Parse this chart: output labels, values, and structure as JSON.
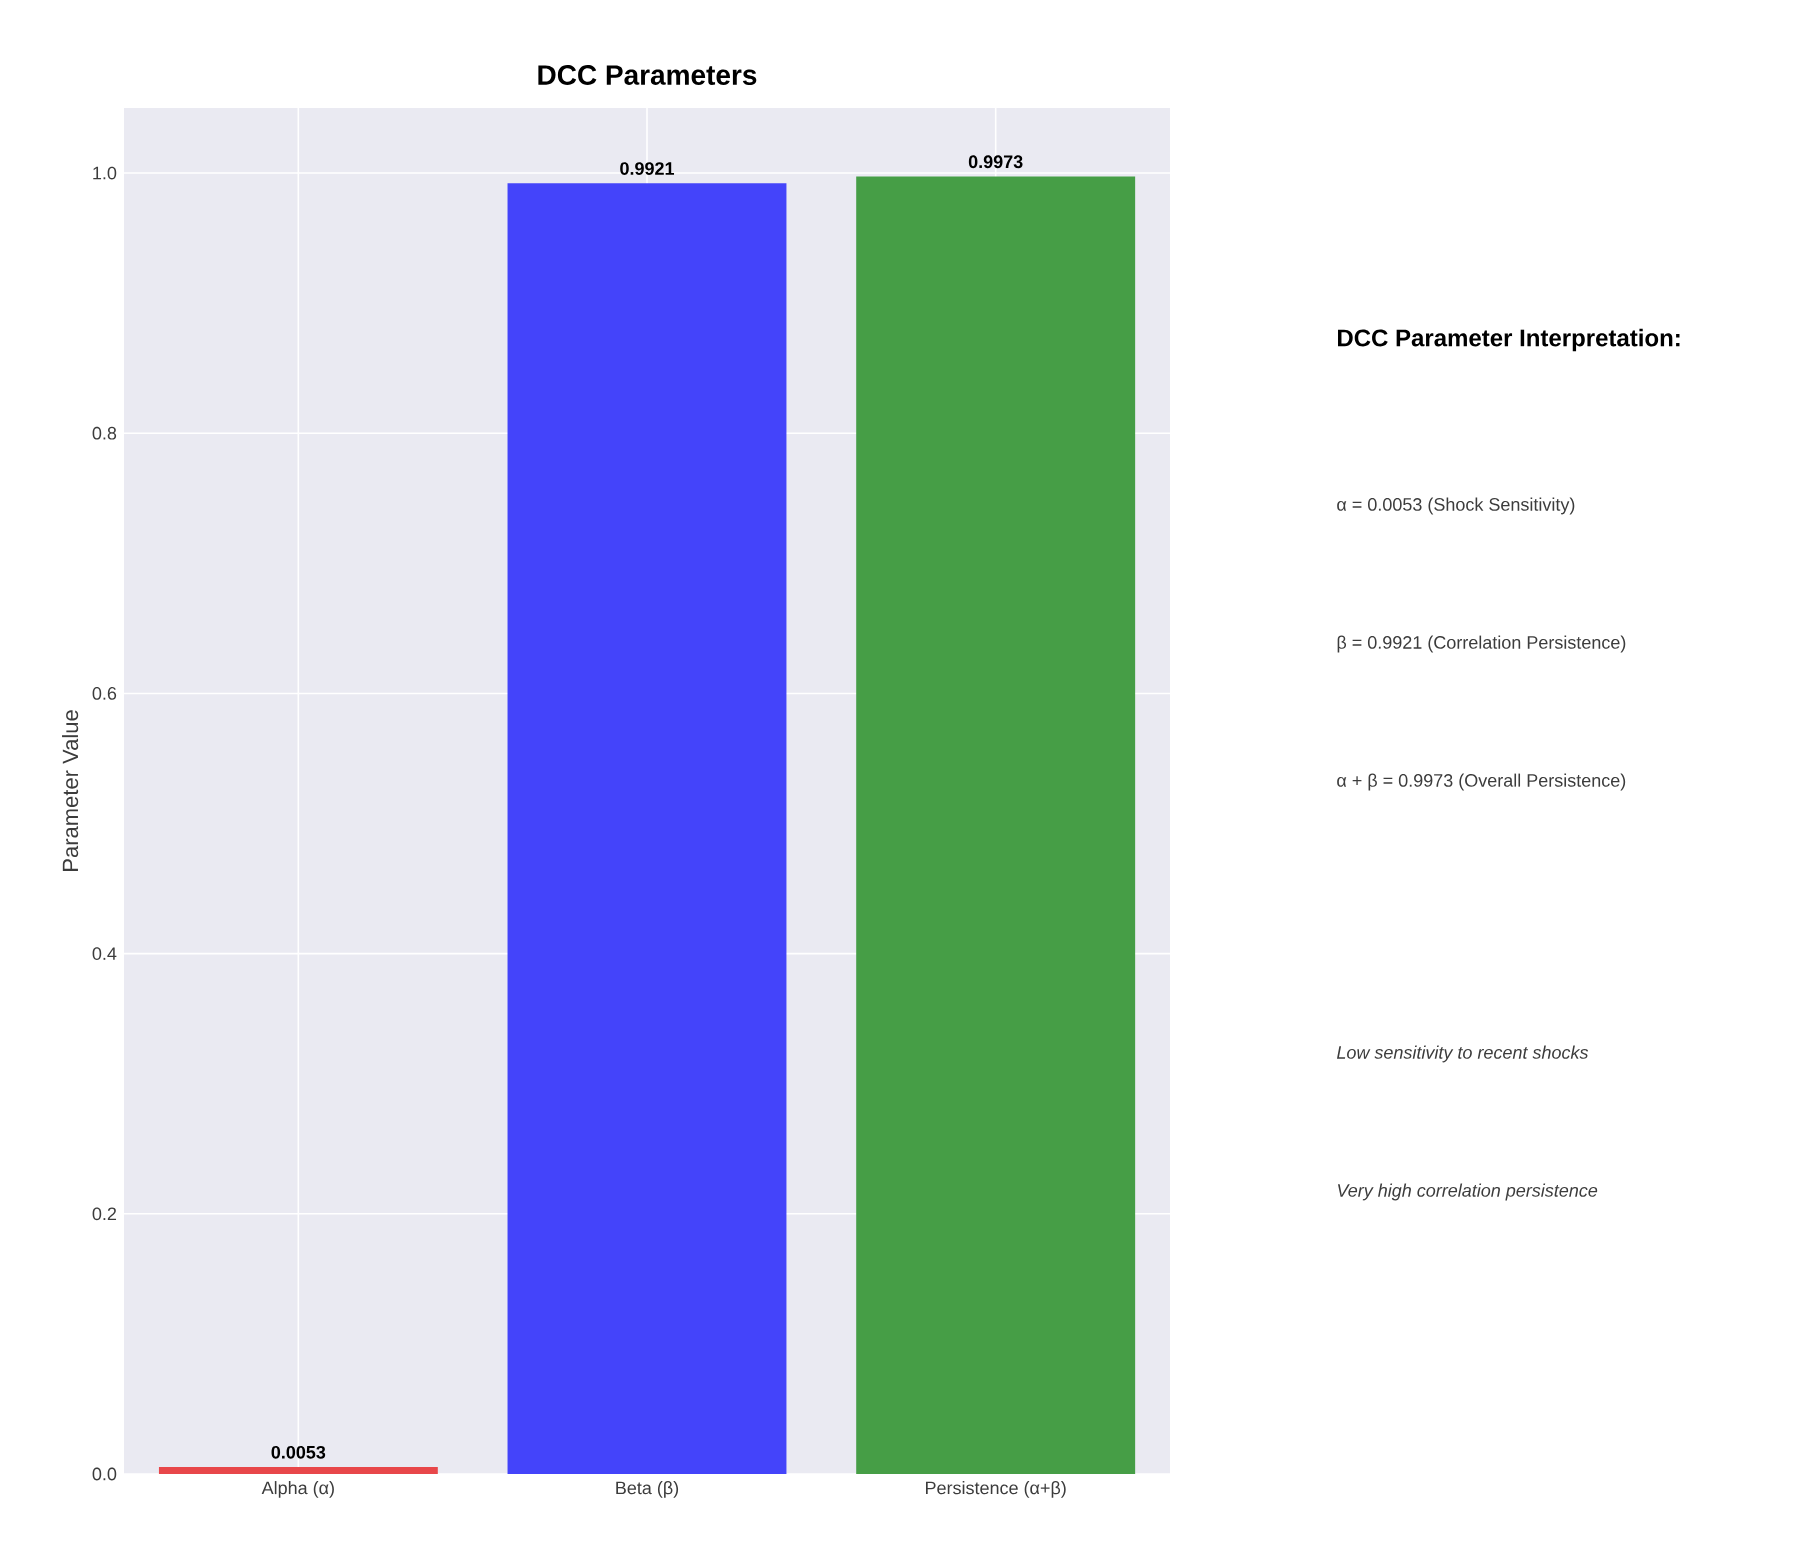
{
  "chart_data": [
    {
      "type": "bar",
      "title": "DCC Parameters",
      "ylabel": "Parameter Value",
      "categories": [
        "Alpha (α)",
        "Beta (β)",
        "Persistence (α+β)"
      ],
      "values": [
        0.0053,
        0.9921,
        0.9973
      ],
      "colors": [
        "#e8474a",
        "#4444fa",
        "#469e46"
      ],
      "ylim": [
        0,
        1.05
      ],
      "yticks": [
        {
          "value": 0,
          "label": "0.0"
        },
        0.2,
        0.4,
        0.6,
        0.8,
        {
          "value": 1,
          "label": "1.0"
        }
      ],
      "grid": true,
      "data_labels": true
    },
    {
      "type": "other",
      "title": "DCC Parameter Interpretation:",
      "annotations": [
        "α = 0.0053 (Shock Sensitivity)",
        "β = 0.9921 (Correlation Persistence)",
        "α + β = 0.9973 (Overall Persistence)",
        "Low sensitivity to recent shocks",
        "Very high correlation persistence"
      ]
    }
  ]
}
